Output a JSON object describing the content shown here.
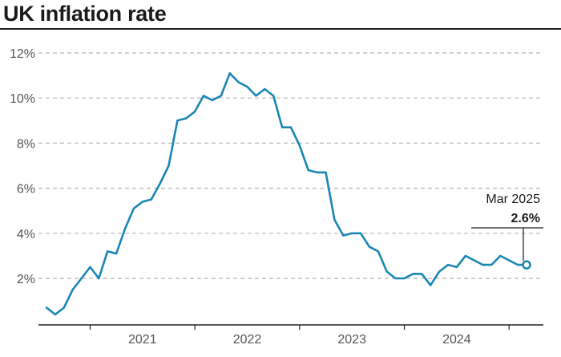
{
  "title": "UK inflation rate",
  "colors": {
    "line": "#1a86b4",
    "grid": "#b5b5b5",
    "axis": "#222222",
    "text": "#555555"
  },
  "chart_data": {
    "type": "line",
    "title": "UK inflation rate",
    "xlabel": "",
    "ylabel": "",
    "ylim": [
      0,
      12
    ],
    "yticks": [
      2,
      4,
      6,
      8,
      10,
      12
    ],
    "ytick_labels": [
      "2%",
      "4%",
      "6%",
      "8%",
      "10%",
      "12%"
    ],
    "xtick_labels": [
      "2021",
      "2022",
      "2023",
      "2024"
    ],
    "grid": "horizontal dashed",
    "series": [
      {
        "x": [
          "2020-08",
          "2020-09",
          "2020-10",
          "2020-11",
          "2020-12",
          "2021-01",
          "2021-02",
          "2021-03",
          "2021-04",
          "2021-05",
          "2021-06",
          "2021-07",
          "2021-08",
          "2021-09",
          "2021-10",
          "2021-11",
          "2021-12",
          "2022-01",
          "2022-02",
          "2022-03",
          "2022-04",
          "2022-05",
          "2022-06",
          "2022-07",
          "2022-08",
          "2022-09",
          "2022-10",
          "2022-11",
          "2022-12",
          "2023-01",
          "2023-02",
          "2023-03",
          "2023-04",
          "2023-05",
          "2023-06",
          "2023-07",
          "2023-08",
          "2023-09",
          "2023-10",
          "2023-11",
          "2023-12",
          "2024-01",
          "2024-02",
          "2024-03",
          "2024-04",
          "2024-05",
          "2024-06",
          "2024-07",
          "2024-08",
          "2024-09",
          "2024-10",
          "2024-11",
          "2024-12",
          "2025-01",
          "2025-02",
          "2025-03"
        ],
        "values": [
          0.7,
          0.4,
          0.7,
          1.5,
          2.0,
          2.5,
          2.0,
          3.2,
          3.1,
          4.2,
          5.1,
          5.4,
          5.5,
          6.2,
          7.0,
          9.0,
          9.1,
          9.4,
          10.1,
          9.9,
          10.1,
          11.1,
          10.7,
          10.5,
          10.1,
          10.4,
          10.1,
          8.7,
          8.7,
          7.9,
          6.8,
          6.7,
          6.7,
          4.6,
          3.9,
          4.0,
          4.0,
          3.4,
          3.2,
          2.3,
          2.0,
          2.0,
          2.2,
          2.2,
          1.7,
          2.3,
          2.6,
          2.5,
          3.0,
          2.8,
          2.6,
          2.6,
          3.0,
          2.8,
          2.6,
          2.6
        ]
      }
    ],
    "annotation": {
      "label": "Mar 2025",
      "value": "2.6%"
    }
  }
}
